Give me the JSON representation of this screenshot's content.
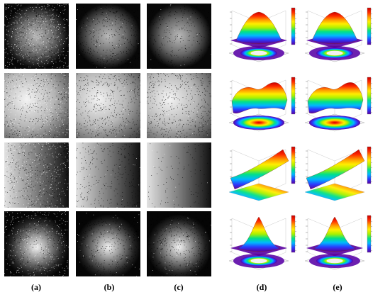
{
  "figure": {
    "captions": [
      {
        "letter": "a",
        "label": "(a)"
      },
      {
        "letter": "b",
        "label": "(b)"
      },
      {
        "letter": "c",
        "label": "(c)"
      },
      {
        "letter": "d",
        "label": "(d)"
      },
      {
        "letter": "e",
        "label": "(e)"
      }
    ],
    "rows": [
      {
        "scene": "circular-blob",
        "noise_a": "dense-salt-pepper",
        "noise_b": "pepper",
        "noise_c": "light-pepper",
        "surface": "gaussian-peak-with-ring"
      },
      {
        "scene": "top-left-bright-gradient",
        "noise_a": "salt-pepper",
        "noise_b": "pepper",
        "noise_c": "pepper",
        "surface": "saddle-wave"
      },
      {
        "scene": "horizontal-gradient",
        "noise_a": "salt-pepper",
        "noise_b": "light-pepper",
        "noise_c": "very-light",
        "surface": "tilted-ramp"
      },
      {
        "scene": "central-spot",
        "noise_a": "salt-pepper",
        "noise_b": "pepper",
        "noise_c": "pepper",
        "surface": "sharp-peak-with-ring"
      }
    ],
    "colormap": [
      "#5a00a0",
      "#2a3cff",
      "#00b7ff",
      "#00e08a",
      "#a8f000",
      "#ffee00",
      "#ff9a00",
      "#ff2a00",
      "#c80000"
    ]
  }
}
